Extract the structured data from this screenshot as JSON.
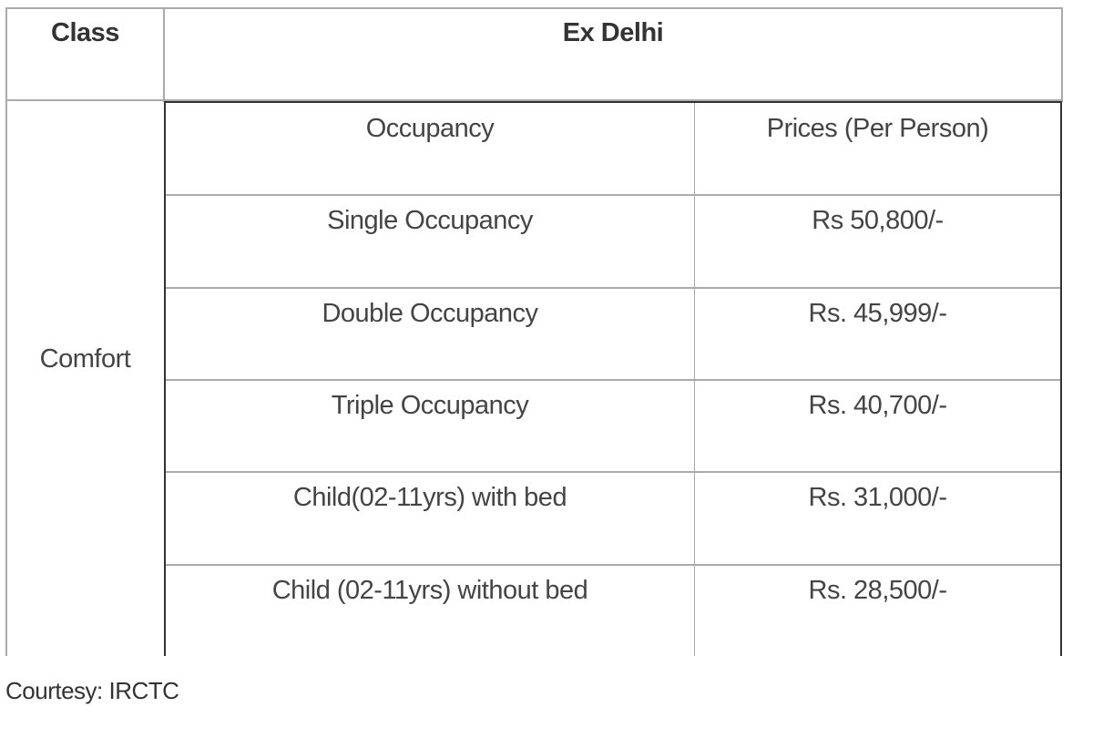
{
  "header": {
    "class": "Class",
    "location": "Ex Delhi"
  },
  "class_name": "Comfort",
  "table": {
    "columns": [
      "Occupancy",
      "Prices (Per Person)"
    ],
    "rows": [
      [
        "Single Occupancy",
        "Rs 50,800/-"
      ],
      [
        "Double Occupancy",
        "Rs. 45,999/-"
      ],
      [
        "Triple Occupancy",
        "Rs. 40,700/-"
      ],
      [
        "Child(02-11yrs) with bed",
        "Rs. 31,000/-"
      ],
      [
        "Child (02-11yrs) without bed",
        "Rs. 28,500/-"
      ]
    ]
  },
  "caption": "Courtesy: IRCTC"
}
